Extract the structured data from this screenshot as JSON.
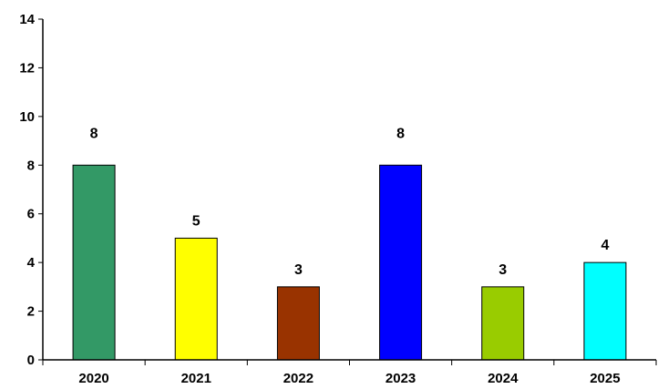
{
  "chart_data": {
    "type": "bar",
    "title": "",
    "xlabel": "",
    "ylabel": "",
    "categories": [
      "2020",
      "2021",
      "2022",
      "2023",
      "2024",
      "2025"
    ],
    "values": [
      8,
      5,
      3,
      8,
      3,
      4
    ],
    "data_labels": [
      "8",
      "5",
      "3",
      "8",
      "3",
      "4"
    ],
    "bar_colors": [
      "#339966",
      "#ffff00",
      "#993300",
      "#0000ff",
      "#99cc00",
      "#00ffff"
    ],
    "ylim": [
      0,
      14
    ],
    "yticks": [
      0,
      2,
      4,
      6,
      8,
      10,
      12,
      14
    ],
    "ytick_labels": [
      "0",
      "2",
      "4",
      "6",
      "8",
      "10",
      "12",
      "14"
    ],
    "grid": false,
    "legend": "none"
  }
}
